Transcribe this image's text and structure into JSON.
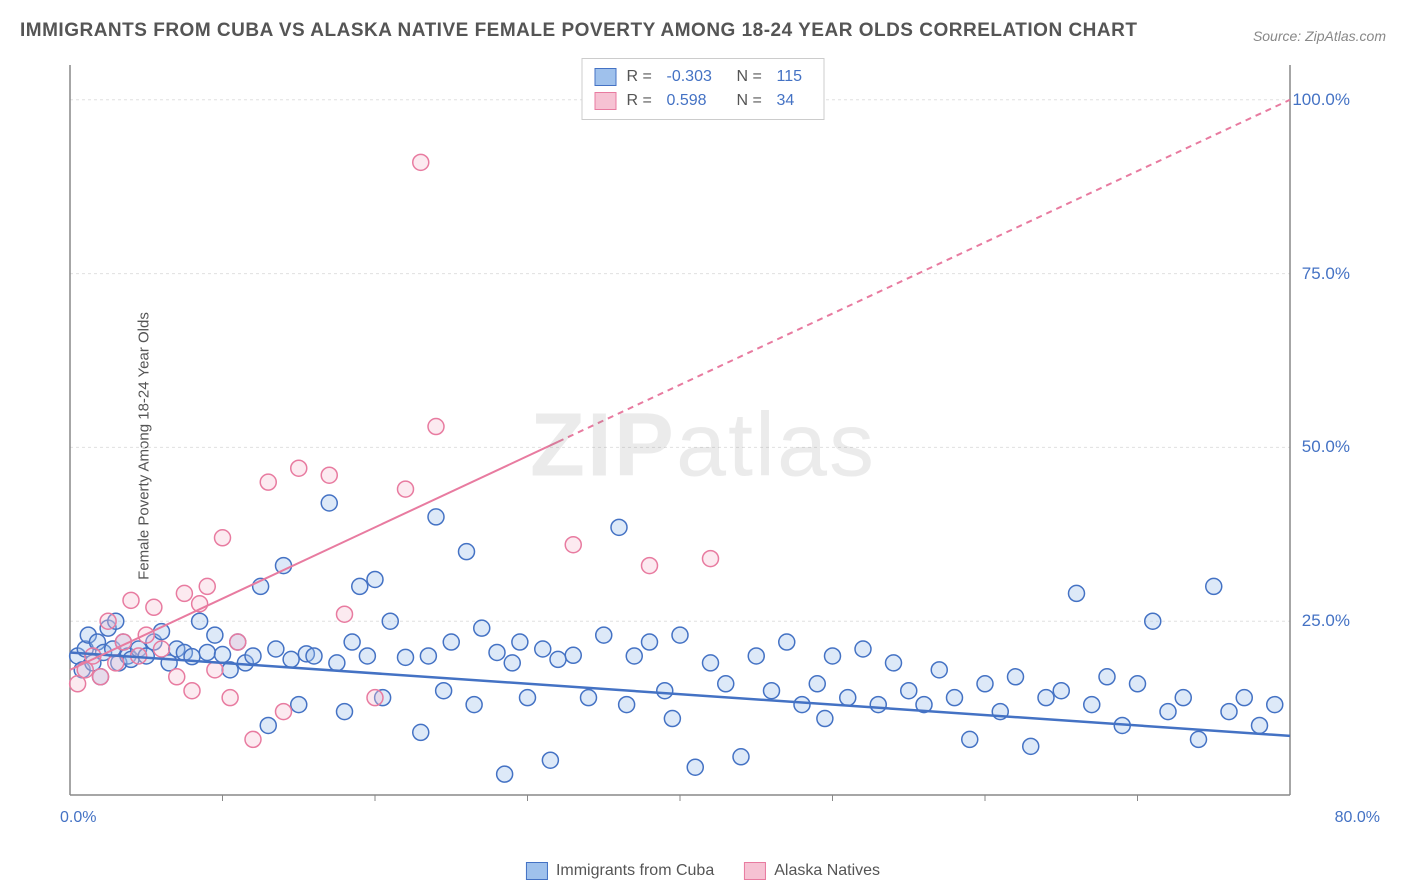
{
  "title": "IMMIGRANTS FROM CUBA VS ALASKA NATIVE FEMALE POVERTY AMONG 18-24 YEAR OLDS CORRELATION CHART",
  "source": "Source: ZipAtlas.com",
  "y_axis_label": "Female Poverty Among 18-24 Year Olds",
  "watermark_bold": "ZIP",
  "watermark_rest": "atlas",
  "chart": {
    "type": "scatter",
    "xlim": [
      0,
      80
    ],
    "ylim": [
      0,
      105
    ],
    "x_origin_label": "0.0%",
    "x_max_label": "80.0%",
    "y_ticks": [
      25,
      50,
      75,
      100
    ],
    "y_tick_labels": [
      "25.0%",
      "50.0%",
      "75.0%",
      "100.0%"
    ],
    "x_minor_ticks": [
      10,
      20,
      30,
      40,
      50,
      60,
      70
    ],
    "background_color": "#ffffff",
    "grid_color": "#e0e0e0",
    "axis_color": "#888888",
    "marker_radius": 8,
    "marker_stroke_width": 1.5,
    "marker_fill_opacity": 0.35,
    "series": [
      {
        "name": "Immigrants from Cuba",
        "color_stroke": "#4472c4",
        "color_fill": "#9fc1ec",
        "r_value": "-0.303",
        "n_value": "115",
        "trend": {
          "x1": 0,
          "y1": 20.5,
          "x2": 80,
          "y2": 8.5,
          "dash": "none",
          "width": 2.5,
          "solid_until_x": 80
        },
        "points": [
          [
            0.5,
            20
          ],
          [
            0.8,
            18
          ],
          [
            1,
            21
          ],
          [
            1.2,
            23
          ],
          [
            1.5,
            19
          ],
          [
            1.8,
            22
          ],
          [
            2,
            17
          ],
          [
            2.2,
            20.5
          ],
          [
            2.5,
            24
          ],
          [
            2.8,
            21
          ],
          [
            3,
            25
          ],
          [
            3.2,
            19
          ],
          [
            3.5,
            22
          ],
          [
            3.8,
            20
          ],
          [
            4,
            19.5
          ],
          [
            4.5,
            21
          ],
          [
            5,
            20
          ],
          [
            5.5,
            22
          ],
          [
            6,
            23.5
          ],
          [
            6.5,
            19
          ],
          [
            7,
            21
          ],
          [
            7.5,
            20.5
          ],
          [
            8,
            19.9
          ],
          [
            8.5,
            25
          ],
          [
            9,
            20.5
          ],
          [
            9.5,
            23
          ],
          [
            10,
            20.2
          ],
          [
            10.5,
            18
          ],
          [
            11,
            22
          ],
          [
            11.5,
            19
          ],
          [
            12,
            20
          ],
          [
            12.5,
            30
          ],
          [
            13,
            10
          ],
          [
            13.5,
            21
          ],
          [
            14,
            33
          ],
          [
            14.5,
            19.5
          ],
          [
            15,
            13
          ],
          [
            15.5,
            20.3
          ],
          [
            16,
            20
          ],
          [
            17,
            42
          ],
          [
            17.5,
            19
          ],
          [
            18,
            12
          ],
          [
            18.5,
            22
          ],
          [
            19,
            30
          ],
          [
            19.5,
            20
          ],
          [
            20,
            31
          ],
          [
            20.5,
            14
          ],
          [
            21,
            25
          ],
          [
            22,
            19.8
          ],
          [
            23,
            9
          ],
          [
            23.5,
            20
          ],
          [
            24,
            40
          ],
          [
            24.5,
            15
          ],
          [
            25,
            22
          ],
          [
            26,
            35
          ],
          [
            26.5,
            13
          ],
          [
            27,
            24
          ],
          [
            28,
            20.5
          ],
          [
            28.5,
            3
          ],
          [
            29,
            19
          ],
          [
            29.5,
            22
          ],
          [
            30,
            14
          ],
          [
            31,
            21
          ],
          [
            31.5,
            5
          ],
          [
            32,
            19.5
          ],
          [
            33,
            20.1
          ],
          [
            34,
            14
          ],
          [
            35,
            23
          ],
          [
            36,
            38.5
          ],
          [
            36.5,
            13
          ],
          [
            37,
            20
          ],
          [
            38,
            22
          ],
          [
            39,
            15
          ],
          [
            39.5,
            11
          ],
          [
            40,
            23
          ],
          [
            41,
            4
          ],
          [
            42,
            19
          ],
          [
            43,
            16
          ],
          [
            44,
            5.5
          ],
          [
            45,
            20
          ],
          [
            46,
            15
          ],
          [
            47,
            22
          ],
          [
            48,
            13
          ],
          [
            49,
            16
          ],
          [
            49.5,
            11
          ],
          [
            50,
            20
          ],
          [
            51,
            14
          ],
          [
            52,
            21
          ],
          [
            53,
            13
          ],
          [
            54,
            19
          ],
          [
            55,
            15
          ],
          [
            56,
            13
          ],
          [
            57,
            18
          ],
          [
            58,
            14
          ],
          [
            59,
            8
          ],
          [
            60,
            16
          ],
          [
            61,
            12
          ],
          [
            62,
            17
          ],
          [
            63,
            7
          ],
          [
            64,
            14
          ],
          [
            65,
            15
          ],
          [
            66,
            29
          ],
          [
            67,
            13
          ],
          [
            68,
            17
          ],
          [
            69,
            10
          ],
          [
            70,
            16
          ],
          [
            71,
            25
          ],
          [
            72,
            12
          ],
          [
            73,
            14
          ],
          [
            74,
            8
          ],
          [
            75,
            30
          ],
          [
            76,
            12
          ],
          [
            77,
            14
          ],
          [
            78,
            10
          ],
          [
            79,
            13
          ]
        ]
      },
      {
        "name": "Alaska Natives",
        "color_stroke": "#e87ba0",
        "color_fill": "#f6c2d3",
        "r_value": "0.598",
        "n_value": "34",
        "trend": {
          "x1": 0,
          "y1": 18,
          "x2": 80,
          "y2": 100,
          "dash": "6,5",
          "width": 2,
          "solid_until_x": 32
        },
        "points": [
          [
            0.5,
            16
          ],
          [
            1,
            18
          ],
          [
            1.5,
            20
          ],
          [
            2,
            17
          ],
          [
            2.5,
            25
          ],
          [
            3,
            19
          ],
          [
            3.5,
            22
          ],
          [
            4,
            28
          ],
          [
            4.5,
            20
          ],
          [
            5,
            23
          ],
          [
            5.5,
            27
          ],
          [
            6,
            21
          ],
          [
            7,
            17
          ],
          [
            7.5,
            29
          ],
          [
            8,
            15
          ],
          [
            8.5,
            27.5
          ],
          [
            9,
            30
          ],
          [
            9.5,
            18
          ],
          [
            10,
            37
          ],
          [
            10.5,
            14
          ],
          [
            11,
            22
          ],
          [
            12,
            8
          ],
          [
            13,
            45
          ],
          [
            14,
            12
          ],
          [
            15,
            47
          ],
          [
            17,
            46
          ],
          [
            18,
            26
          ],
          [
            20,
            14
          ],
          [
            22,
            44
          ],
          [
            23,
            91
          ],
          [
            24,
            53
          ],
          [
            33,
            36
          ],
          [
            38,
            33
          ],
          [
            42,
            34
          ]
        ]
      }
    ]
  },
  "legend_top": {
    "r_label": "R =",
    "n_label": "N ="
  },
  "legend_bottom": {
    "series1_label": "Immigrants from Cuba",
    "series2_label": "Alaska Natives"
  }
}
